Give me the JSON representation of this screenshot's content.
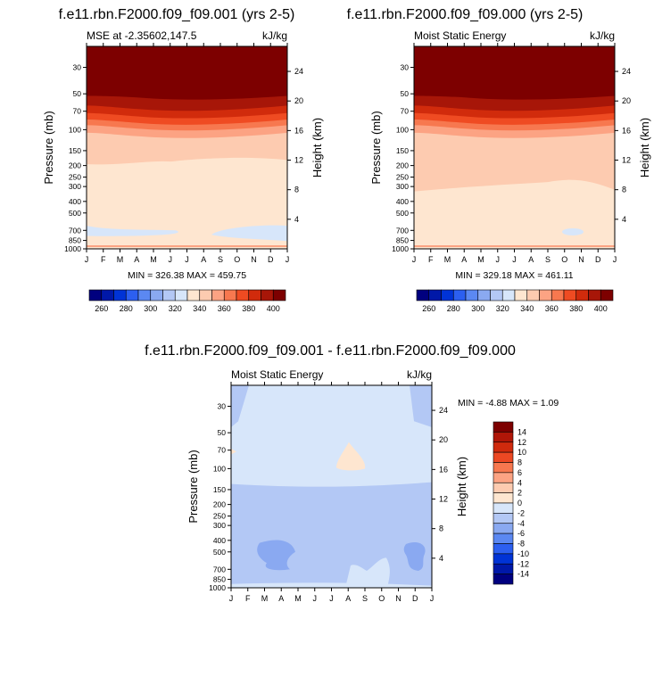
{
  "figure": {
    "colors": {
      "frame": "#000000",
      "background": "#ffffff"
    }
  },
  "chart_data": [
    {
      "type": "heatmap",
      "id": "top-left",
      "title": "f.e11.rbn.F2000.f09_f09.001 (yrs 2-5)",
      "subtitle_left": "MSE at -2.35602,147.5",
      "subtitle_right": "kJ/kg",
      "xlabel": "",
      "ylabel": "Pressure (mb)",
      "ylabel_right": "Height (km)",
      "x_ticks": [
        "J",
        "F",
        "M",
        "A",
        "M",
        "J",
        "J",
        "A",
        "S",
        "O",
        "N",
        "D",
        "J"
      ],
      "y_ticks": [
        30,
        50,
        70,
        100,
        150,
        200,
        250,
        300,
        400,
        500,
        700,
        850,
        1000
      ],
      "y_scale": "log",
      "ylim": [
        1000,
        20
      ],
      "y_right_ticks": [
        24,
        20,
        16,
        12,
        8,
        4
      ],
      "stats_text": "MIN = 326.38 MAX = 459.75",
      "min": 326.38,
      "max": 459.75,
      "colorbar": {
        "labels": [
          "260",
          "280",
          "300",
          "320",
          "340",
          "360",
          "380",
          "400"
        ],
        "colors": [
          "#00007f",
          "#0018a8",
          "#0033d6",
          "#2c5ff0",
          "#5b88f2",
          "#8aa9f1",
          "#b3c8f5",
          "#d7e6fa",
          "#fee6d0",
          "#fdcbb0",
          "#fca383",
          "#f7784f",
          "#ef4b22",
          "#d12b0c",
          "#a71608",
          "#7d0000"
        ]
      },
      "bands": [
        {
          "value": "< 340",
          "color": "#d7e6fa",
          "region": "low-level patches 700 mb"
        },
        {
          "value": "340-350",
          "color": "#fee6d0",
          "region": "surface to ~200 mb"
        },
        {
          "value": "350-360",
          "color": "#fdcbb0",
          "region": "~200-100 mb"
        },
        {
          "value": "> 400",
          "color": "#7d0000",
          "region": "above ~50 mb"
        }
      ]
    },
    {
      "type": "heatmap",
      "id": "top-right",
      "title": "f.e11.rbn.F2000.f09_f09.000 (yrs 2-5)",
      "subtitle_left": "Moist Static Energy",
      "subtitle_right": "kJ/kg",
      "xlabel": "",
      "ylabel": "Pressure (mb)",
      "ylabel_right": "Height (km)",
      "x_ticks": [
        "J",
        "F",
        "M",
        "A",
        "M",
        "J",
        "J",
        "A",
        "S",
        "O",
        "N",
        "D",
        "J"
      ],
      "y_ticks": [
        30,
        50,
        70,
        100,
        150,
        200,
        250,
        300,
        400,
        500,
        700,
        850,
        1000
      ],
      "y_scale": "log",
      "ylim": [
        1000,
        20
      ],
      "y_right_ticks": [
        24,
        20,
        16,
        12,
        8,
        4
      ],
      "stats_text": "MIN = 329.18 MAX = 461.11",
      "min": 329.18,
      "max": 461.11,
      "colorbar": {
        "labels": [
          "260",
          "280",
          "300",
          "320",
          "340",
          "360",
          "380",
          "400"
        ],
        "colors": [
          "#00007f",
          "#0018a8",
          "#0033d6",
          "#2c5ff0",
          "#5b88f2",
          "#8aa9f1",
          "#b3c8f5",
          "#d7e6fa",
          "#fee6d0",
          "#fdcbb0",
          "#fca383",
          "#f7784f",
          "#ef4b22",
          "#d12b0c",
          "#a71608",
          "#7d0000"
        ]
      }
    },
    {
      "type": "heatmap",
      "id": "bottom-diff",
      "title": "f.e11.rbn.F2000.f09_f09.001 - f.e11.rbn.F2000.f09_f09.000",
      "subtitle_left": "Moist Static Energy",
      "subtitle_right": "kJ/kg",
      "xlabel": "",
      "ylabel": "Pressure (mb)",
      "ylabel_right": "Height (km)",
      "x_ticks": [
        "J",
        "F",
        "M",
        "A",
        "M",
        "J",
        "J",
        "A",
        "S",
        "O",
        "N",
        "D",
        "J"
      ],
      "y_ticks": [
        30,
        50,
        70,
        100,
        150,
        200,
        250,
        300,
        400,
        500,
        700,
        850,
        1000
      ],
      "y_scale": "log",
      "ylim": [
        1000,
        20
      ],
      "y_right_ticks": [
        24,
        20,
        16,
        12,
        8,
        4
      ],
      "stats_text": "MIN =  -4.88 MAX =   1.09",
      "min": -4.88,
      "max": 1.09,
      "colorbar": {
        "labels": [
          "14",
          "12",
          "10",
          "8",
          "6",
          "4",
          "2",
          "0",
          "-2",
          "-4",
          "-6",
          "-8",
          "-10",
          "-12",
          "-14"
        ],
        "colors": [
          "#7d0000",
          "#b01608",
          "#d02a0d",
          "#ec4823",
          "#f7784f",
          "#fca383",
          "#fdcbb0",
          "#fee6d0",
          "#d7e6fa",
          "#b3c8f5",
          "#8aa9f1",
          "#5b88f2",
          "#2c5ff0",
          "#0033d6",
          "#0018a8",
          "#00007f"
        ]
      }
    }
  ]
}
